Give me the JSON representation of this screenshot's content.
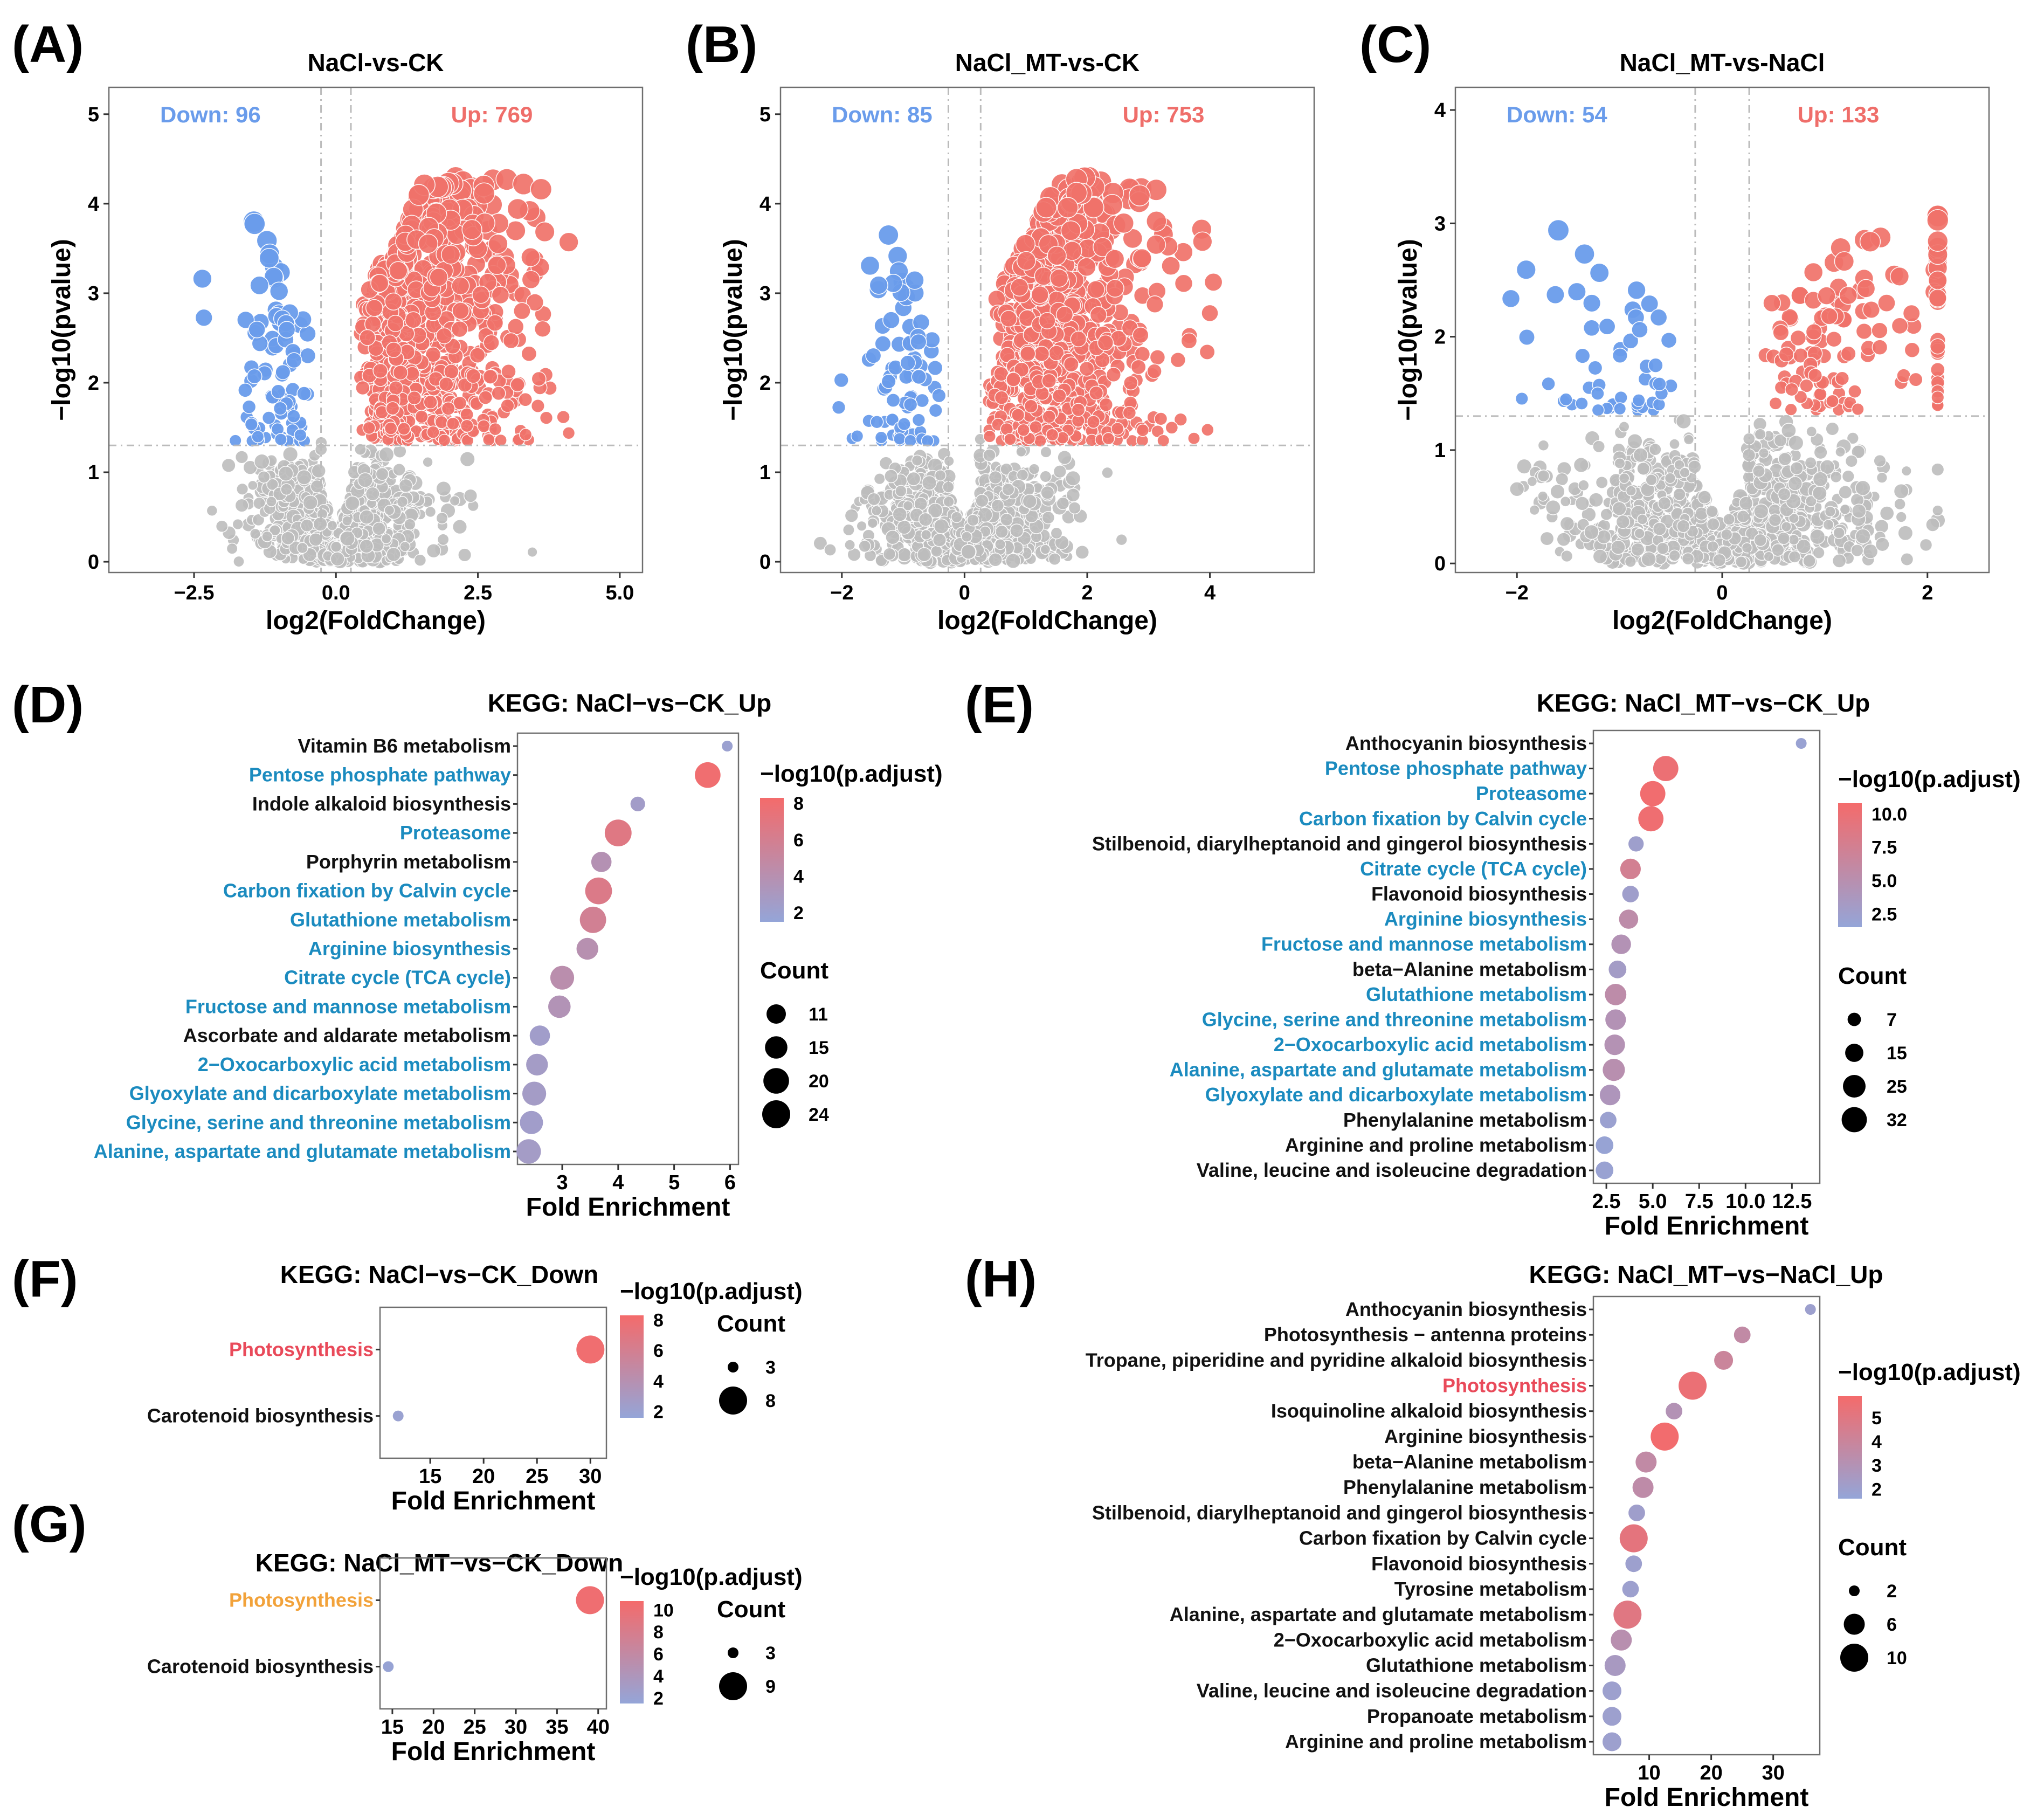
{
  "panel_labels": [
    "(A)",
    "(B)",
    "(C)",
    "(D)",
    "(E)",
    "(F)",
    "(G)",
    "(H)"
  ],
  "colors": {
    "up": "#F0726A",
    "down": "#6A9CEB",
    "ns": "#BDBDBD",
    "up_text": "#EF6E6A",
    "down_text": "#6A9CEB",
    "term_blue": "#1B8BBF",
    "term_red": "#E94A5A",
    "term_orange": "#F2A23A",
    "term_black": "#111111",
    "grad_high": "#F46B6B",
    "grad_low": "#94A5D8"
  },
  "chart_data": [
    {
      "id": "A",
      "type": "scatter",
      "subtype": "volcano",
      "title": "NaCl-vs-CK",
      "xlabel": "log2(FoldChange)",
      "ylabel": "−log10(pvalue)",
      "xlim": [
        -4.0,
        5.4
      ],
      "ylim": [
        -0.12,
        5.3
      ],
      "xticks": [
        -2.5,
        0.0,
        2.5,
        5.0
      ],
      "xtick_labels": [
        "−2.5",
        "0.0",
        "2.5",
        "5.0"
      ],
      "yticks": [
        0,
        1,
        2,
        3,
        4,
        5
      ],
      "ytick_labels": [
        "0",
        "1",
        "2",
        "3",
        "4",
        "5"
      ],
      "fc_threshold": 0.263,
      "p_threshold_line": 1.3,
      "down_label": "Down: 96",
      "up_label": "Up: 769",
      "down_count": 96,
      "up_count": 769,
      "seed": 11,
      "xmin_ns": -3.0,
      "xmax_ns": 4.1,
      "xmin_sig": -2.9,
      "xmax_sig": 4.1,
      "ymax_up": 4.25,
      "ymax_down": 3.9
    },
    {
      "id": "B",
      "type": "scatter",
      "subtype": "volcano",
      "title": "NaCl_MT-vs-CK",
      "xlabel": "log2(FoldChange)",
      "ylabel": "−log10(pvalue)",
      "xlim": [
        -3.0,
        5.7
      ],
      "ylim": [
        -0.12,
        5.3
      ],
      "xticks": [
        -2,
        0,
        2,
        4
      ],
      "xtick_labels": [
        "−2",
        "0",
        "2",
        "4"
      ],
      "yticks": [
        0,
        1,
        2,
        3,
        4,
        5
      ],
      "ytick_labels": [
        "0",
        "1",
        "2",
        "3",
        "4",
        "5"
      ],
      "fc_threshold": 0.263,
      "p_threshold_line": 1.3,
      "down_label": "Down: 85",
      "up_label": "Up: 753",
      "down_count": 85,
      "up_count": 753,
      "seed": 23,
      "xmin_ns": -2.4,
      "xmax_ns": 4.3,
      "xmin_sig": -2.4,
      "xmax_sig": 4.4,
      "ymax_up": 4.25,
      "ymax_down": 4.05
    },
    {
      "id": "C",
      "type": "scatter",
      "subtype": "volcano",
      "title": "NaCl_MT-vs-NaCl",
      "xlabel": "log2(FoldChange)",
      "ylabel": "−log10(pvalue)",
      "xlim": [
        -2.6,
        2.6
      ],
      "ylim": [
        -0.08,
        4.2
      ],
      "xticks": [
        -2,
        0,
        2
      ],
      "xtick_labels": [
        "−2",
        "0",
        "2"
      ],
      "yticks": [
        0,
        1,
        2,
        3,
        4
      ],
      "ytick_labels": [
        "0",
        "1",
        "2",
        "3",
        "4"
      ],
      "fc_threshold": 0.263,
      "p_threshold_line": 1.3,
      "down_label": "Down: 54",
      "up_label": "Up: 133",
      "down_count": 54,
      "up_count": 133,
      "seed": 37,
      "xmin_ns": -2.0,
      "xmax_ns": 2.1,
      "xmin_sig": -2.2,
      "xmax_sig": 2.1,
      "ymax_up": 3.05,
      "ymax_down": 3.0
    },
    {
      "id": "D",
      "type": "scatter",
      "subtype": "dotplot",
      "title": "KEGG: NaCl−vs−CK_Up",
      "xlabel": "Fold Enrichment",
      "xlim": [
        2.2,
        6.15
      ],
      "xticks": [
        3,
        4,
        5,
        6
      ],
      "xtick_labels": [
        "3",
        "4",
        "5",
        "6"
      ],
      "terms": [
        "Vitamin B6 metabolism",
        "Pentose phosphate pathway",
        "Indole alkaloid biosynthesis",
        "Proteasome",
        "Porphyrin metabolism",
        "Carbon fixation by Calvin cycle",
        "Glutathione metabolism",
        "Arginine biosynthesis",
        "Citrate cycle (TCA cycle)",
        "Fructose and mannose metabolism",
        "Ascorbate and aldarate metabolism",
        "2−Oxocarboxylic acid metabolism",
        "Glyoxylate and dicarboxylate metabolism",
        "Glycine, serine and threonine metabolism",
        "Alanine, aspartate and glutamate metabolism"
      ],
      "term_colors": [
        "black",
        "blue",
        "black",
        "blue",
        "black",
        "blue",
        "blue",
        "blue",
        "blue",
        "blue",
        "black",
        "blue",
        "blue",
        "blue",
        "blue"
      ],
      "fold_enrichment": [
        5.95,
        5.6,
        4.35,
        4.0,
        3.7,
        3.65,
        3.55,
        3.45,
        3.0,
        2.95,
        2.6,
        2.55,
        2.5,
        2.45,
        2.4
      ],
      "count": [
        3,
        20,
        6,
        22,
        12,
        22,
        21,
        14,
        17,
        15,
        12,
        14,
        17,
        16,
        18
      ],
      "neglog10_padj": [
        2.0,
        8.0,
        2.5,
        6.8,
        3.8,
        6.5,
        5.8,
        4.0,
        4.2,
        3.6,
        2.4,
        2.6,
        2.6,
        2.4,
        2.6
      ],
      "color_legend_title": "−log10(p.adjust)",
      "color_range": [
        1.5,
        8.3
      ],
      "color_ticks": [
        "8",
        "6",
        "4",
        "2"
      ],
      "color_tick_values": [
        8,
        6,
        4,
        2
      ],
      "size_legend_title": "Count",
      "size_breaks": [
        "11",
        "15",
        "20",
        "24"
      ],
      "size_break_values": [
        11,
        15,
        20,
        24
      ],
      "size_range": [
        3,
        24
      ]
    },
    {
      "id": "E",
      "type": "scatter",
      "subtype": "dotplot",
      "title": "KEGG: NaCl_MT−vs−CK_Up",
      "xlabel": "Fold Enrichment",
      "xlim": [
        1.8,
        14.0
      ],
      "xticks": [
        2.5,
        5.0,
        7.5,
        10.0,
        12.5
      ],
      "xtick_labels": [
        "2.5",
        "5.0",
        "7.5",
        "10.0",
        "12.5"
      ],
      "terms": [
        "Anthocyanin biosynthesis",
        "Pentose phosphate pathway",
        "Proteasome",
        "Carbon fixation by Calvin cycle",
        "Stilbenoid, diarylheptanoid and gingerol biosynthesis",
        "Citrate cycle (TCA cycle)",
        "Flavonoid biosynthesis",
        "Arginine biosynthesis",
        "Fructose and mannose metabolism",
        "beta−Alanine metabolism",
        "Glutathione metabolism",
        "Glycine, serine and threonine metabolism",
        "2−Oxocarboxylic acid metabolism",
        "Alanine, aspartate and glutamate metabolism",
        "Glyoxylate and dicarboxylate metabolism",
        "Phenylalanine metabolism",
        "Arginine and proline metabolism",
        "Valine, leucine and isoleucine degradation"
      ],
      "term_colors": [
        "black",
        "blue",
        "blue",
        "blue",
        "black",
        "blue",
        "black",
        "blue",
        "blue",
        "black",
        "blue",
        "blue",
        "blue",
        "blue",
        "blue",
        "black",
        "black",
        "black"
      ],
      "fold_enrichment": [
        13.0,
        5.7,
        5.0,
        4.9,
        4.1,
        3.8,
        3.8,
        3.7,
        3.3,
        3.1,
        3.0,
        3.0,
        2.95,
        2.9,
        2.7,
        2.6,
        2.4,
        2.4
      ],
      "count": [
        4,
        32,
        32,
        32,
        10,
        20,
        12,
        17,
        18,
        14,
        22,
        20,
        20,
        24,
        20,
        12,
        14,
        14
      ],
      "neglog10_padj": [
        2.0,
        10.0,
        10.5,
        10.3,
        2.5,
        7.5,
        2.6,
        5.5,
        4.5,
        3.0,
        5.5,
        4.5,
        4.6,
        5.0,
        4.0,
        2.2,
        1.8,
        2.0
      ],
      "color_legend_title": "−log10(p.adjust)",
      "color_range": [
        1.5,
        10.8
      ],
      "color_ticks": [
        "10.0",
        "7.5",
        "5.0",
        "2.5"
      ],
      "color_tick_values": [
        10,
        7.5,
        5,
        2.5
      ],
      "size_legend_title": "Count",
      "size_breaks": [
        "7",
        "15",
        "25",
        "32"
      ],
      "size_break_values": [
        7,
        15,
        25,
        32
      ],
      "size_range": [
        3,
        32
      ]
    },
    {
      "id": "F",
      "type": "scatter",
      "subtype": "dotplot",
      "title": "KEGG: NaCl−vs−CK_Down",
      "xlabel": "Fold Enrichment",
      "xlim": [
        10.3,
        31.5
      ],
      "xticks": [
        15,
        20,
        25,
        30
      ],
      "xtick_labels": [
        "15",
        "20",
        "25",
        "30"
      ],
      "terms": [
        "Photosynthesis",
        "Carotenoid biosynthesis"
      ],
      "term_colors": [
        "red",
        "black"
      ],
      "fold_enrichment": [
        30.0,
        12.0
      ],
      "count": [
        8,
        3
      ],
      "neglog10_padj": [
        8.0,
        2.0
      ],
      "color_legend_title": "−log10(p.adjust)",
      "color_range": [
        1.6,
        8.3
      ],
      "color_ticks": [
        "8",
        "6",
        "4",
        "2"
      ],
      "color_tick_values": [
        8,
        6,
        4,
        2
      ],
      "size_legend_title": "Count",
      "size_breaks": [
        "3",
        "8"
      ],
      "size_break_values": [
        3,
        8
      ],
      "size_range": [
        3,
        8
      ]
    },
    {
      "id": "G",
      "type": "scatter",
      "subtype": "dotplot",
      "title": "KEGG: NaCl_MT−vs−CK_Down",
      "xlabel": "Fold Enrichment",
      "xlim": [
        13.5,
        41.0
      ],
      "xticks": [
        15,
        20,
        25,
        30,
        35,
        40
      ],
      "xtick_labels": [
        "15",
        "20",
        "25",
        "30",
        "35",
        "40"
      ],
      "terms": [
        "Photosynthesis",
        "Carotenoid biosynthesis"
      ],
      "term_colors": [
        "orange",
        "black"
      ],
      "fold_enrichment": [
        39.0,
        14.5
      ],
      "count": [
        9,
        3
      ],
      "neglog10_padj": [
        10.3,
        1.8
      ],
      "color_legend_title": "−log10(p.adjust)",
      "color_range": [
        1.5,
        10.8
      ],
      "color_ticks": [
        "10",
        "8",
        "6",
        "4",
        "2"
      ],
      "color_tick_values": [
        10,
        8,
        6,
        4,
        2
      ],
      "size_legend_title": "Count",
      "size_breaks": [
        "3",
        "9"
      ],
      "size_break_values": [
        3,
        9
      ],
      "size_range": [
        3,
        9
      ]
    },
    {
      "id": "H",
      "type": "scatter",
      "subtype": "dotplot",
      "title": "KEGG: NaCl_MT−vs−NaCl_Up",
      "xlabel": "Fold Enrichment",
      "xlim": [
        1.0,
        37.5
      ],
      "xticks": [
        10,
        20,
        30
      ],
      "xtick_labels": [
        "10",
        "20",
        "30"
      ],
      "terms": [
        "Anthocyanin biosynthesis",
        "Photosynthesis − antenna proteins",
        "Tropane, piperidine and pyridine alkaloid biosynthesis",
        "Photosynthesis",
        "Isoquinoline alkaloid biosynthesis",
        "Arginine biosynthesis",
        "beta−Alanine metabolism",
        "Phenylalanine metabolism",
        "Stilbenoid, diarylheptanoid and gingerol biosynthesis",
        "Carbon fixation by Calvin cycle",
        "Flavonoid biosynthesis",
        "Tyrosine metabolism",
        "Alanine, aspartate and glutamate metabolism",
        "2−Oxocarboxylic acid metabolism",
        "Glutathione metabolism",
        "Valine, leucine and isoleucine degradation",
        "Propanoate metabolism",
        "Arginine and proline metabolism"
      ],
      "term_colors": [
        "black",
        "black",
        "black",
        "red",
        "black",
        "black",
        "black",
        "black",
        "black",
        "black",
        "black",
        "black",
        "black",
        "black",
        "black",
        "black",
        "black",
        "black"
      ],
      "fold_enrichment": [
        36.0,
        25.0,
        22.0,
        17.0,
        14.0,
        12.5,
        9.5,
        9.0,
        8.0,
        7.5,
        7.5,
        7.0,
        6.5,
        5.5,
        4.5,
        4.0,
        4.0,
        4.0
      ],
      "count": [
        2,
        4,
        5,
        10,
        4,
        10,
        6,
        6,
        4,
        10,
        4,
        4,
        10,
        6,
        6,
        5,
        5,
        5
      ],
      "neglog10_padj": [
        2.0,
        3.6,
        4.0,
        5.5,
        3.0,
        5.8,
        3.6,
        3.5,
        2.1,
        5.2,
        2.0,
        2.0,
        5.0,
        3.2,
        2.5,
        2.0,
        2.0,
        2.0
      ],
      "color_legend_title": "−log10(p.adjust)",
      "color_range": [
        1.6,
        5.9
      ],
      "color_ticks": [
        "5",
        "4",
        "3",
        "2"
      ],
      "color_tick_values": [
        5,
        4,
        3,
        2
      ],
      "size_legend_title": "Count",
      "size_breaks": [
        "2",
        "6",
        "10"
      ],
      "size_break_values": [
        2,
        6,
        10
      ],
      "size_range": [
        2,
        10
      ]
    }
  ]
}
